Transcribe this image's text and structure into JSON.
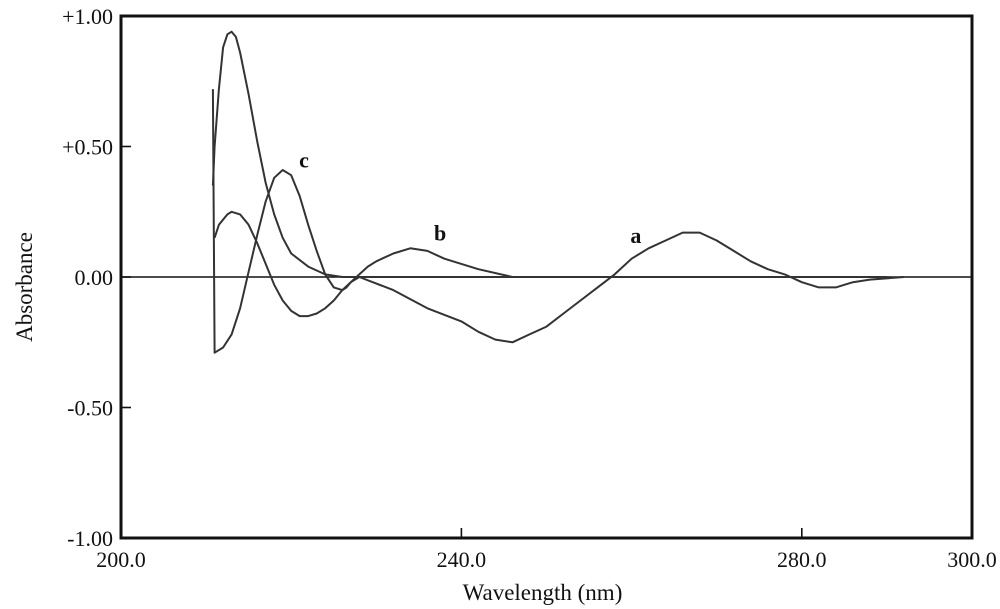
{
  "chart_data": {
    "type": "line",
    "title": "",
    "xlabel": "Wavelength (nm)",
    "ylabel": "Absorbance",
    "xlim": [
      200,
      300
    ],
    "ylim": [
      -1.0,
      1.0
    ],
    "x_ticks": [
      {
        "value": 200,
        "label": "200.0"
      },
      {
        "value": 240,
        "label": "240.0"
      },
      {
        "value": 280,
        "label": "280.0"
      },
      {
        "value": 300,
        "label": "300.0"
      }
    ],
    "y_ticks": [
      {
        "value": 1.0,
        "label": "+1.00"
      },
      {
        "value": 0.5,
        "label": "+0.50"
      },
      {
        "value": 0.0,
        "label": "0.00"
      },
      {
        "value": -0.5,
        "label": "-0.50"
      },
      {
        "value": -1.0,
        "label": "-1.00"
      }
    ],
    "grid": false,
    "series": [
      {
        "name": "a",
        "x": [
          210.8,
          211,
          211.5,
          212,
          212.5,
          213,
          213.5,
          214,
          215,
          216,
          217,
          218,
          219,
          220,
          222,
          224,
          226,
          228,
          232,
          236,
          240,
          242,
          244,
          246,
          248,
          250,
          252,
          254,
          256,
          258,
          260,
          262,
          264,
          266,
          268,
          270,
          272,
          274,
          276,
          278,
          280,
          282,
          284,
          286,
          288,
          292
        ],
        "y": [
          0.35,
          0.5,
          0.72,
          0.88,
          0.93,
          0.94,
          0.92,
          0.86,
          0.7,
          0.52,
          0.36,
          0.24,
          0.15,
          0.09,
          0.04,
          0.01,
          0.0,
          0.0,
          -0.05,
          -0.12,
          -0.17,
          -0.21,
          -0.24,
          -0.25,
          -0.22,
          -0.19,
          -0.14,
          -0.09,
          -0.04,
          0.01,
          0.07,
          0.11,
          0.14,
          0.17,
          0.17,
          0.14,
          0.1,
          0.06,
          0.03,
          0.01,
          -0.02,
          -0.04,
          -0.04,
          -0.02,
          -0.01,
          0.0
        ]
      },
      {
        "name": "b",
        "x": [
          211,
          211.5,
          212,
          212.5,
          213,
          214,
          215,
          216,
          217,
          218,
          219,
          220,
          221,
          222,
          223,
          224,
          225,
          226,
          227,
          228,
          229,
          230,
          232,
          234,
          236,
          238,
          240,
          242,
          246,
          250,
          260,
          270,
          280,
          290
        ],
        "y": [
          0.15,
          0.2,
          0.22,
          0.24,
          0.25,
          0.24,
          0.2,
          0.13,
          0.05,
          -0.03,
          -0.09,
          -0.13,
          -0.15,
          -0.15,
          -0.14,
          -0.12,
          -0.09,
          -0.05,
          -0.02,
          0.01,
          0.04,
          0.06,
          0.09,
          0.11,
          0.1,
          0.07,
          0.05,
          0.03,
          0.0,
          0.0,
          0.0,
          0.0,
          0.0,
          0.0
        ]
      },
      {
        "name": "c",
        "x": [
          210.8,
          211,
          212,
          213,
          214,
          215,
          216,
          217,
          218,
          219,
          220,
          221,
          222,
          223,
          224,
          225,
          226,
          226.5,
          227,
          228,
          230,
          235,
          240,
          250,
          260,
          270,
          280,
          290
        ],
        "y": [
          0.72,
          -0.29,
          -0.27,
          -0.22,
          -0.12,
          0.02,
          0.16,
          0.29,
          0.38,
          0.41,
          0.39,
          0.31,
          0.2,
          0.1,
          0.01,
          -0.04,
          -0.05,
          -0.04,
          -0.02,
          0.0,
          0.0,
          0.0,
          0.0,
          0.0,
          0.0,
          0.0,
          0.0,
          0.0
        ]
      }
    ],
    "annotations": [
      {
        "text": "c",
        "x": 221.5,
        "y": 0.42
      },
      {
        "text": "b",
        "x": 237.5,
        "y": 0.14
      },
      {
        "text": "a",
        "x": 260.5,
        "y": 0.13
      }
    ]
  }
}
